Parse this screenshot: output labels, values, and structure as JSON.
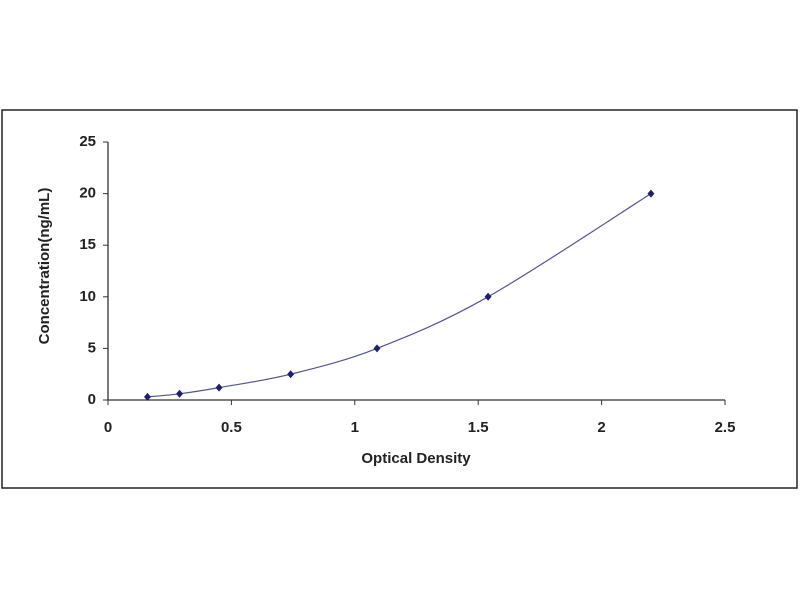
{
  "chart_data": {
    "type": "scatter",
    "xlabel": "Optical Density",
    "ylabel": "Concentration(ng/mL)",
    "x": [
      0.16,
      0.29,
      0.45,
      0.74,
      1.09,
      1.54,
      2.2
    ],
    "values": [
      0.3,
      0.6,
      1.2,
      2.5,
      5,
      10,
      20
    ],
    "color": "#1f1f6e",
    "line_color": "#55558f",
    "xlim": [
      0,
      2.5
    ],
    "xticks": [
      0,
      0.5,
      1,
      1.5,
      2,
      2.5
    ],
    "ylim": [
      0,
      25
    ],
    "yticks": [
      0,
      5,
      10,
      15,
      20,
      25
    ],
    "grid": false
  }
}
